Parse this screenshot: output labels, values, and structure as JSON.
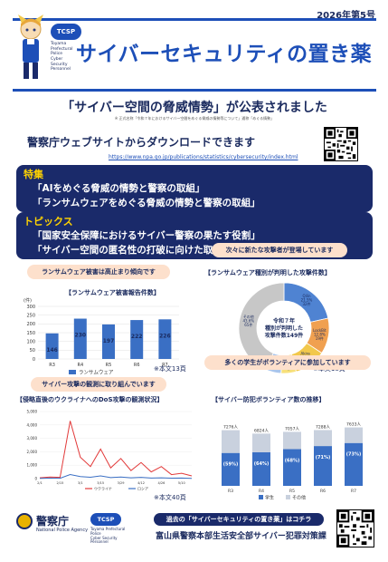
{
  "header": {
    "issue": "2026年第5号",
    "title": "サイバーセキュリティの置き薬",
    "tcsp_badge": "TCSP",
    "tcsp_lines": [
      "Toyama",
      "Prefectural",
      "Police",
      "Cyber",
      "Security",
      "Personnel"
    ]
  },
  "headline": "「サイバー空間の脅威情勢」が公表されました",
  "footnote": "※ 正式名称「令和７年におけるサイバー空間をめぐる脅威の情勢等について」通称「めぐる情勢」",
  "download": {
    "text": "警察庁ウェブサイトからダウンロードできます",
    "url": "https://www.npa.go.jp/publications/statistics/cybersecurity/index.html"
  },
  "special": {
    "label": "特集",
    "items": [
      "「AIをめぐる脅威の情勢と警察の取組」",
      "「ランサムウェアをめぐる脅威の情勢と警察の取組」"
    ]
  },
  "topics": {
    "label": "トピックス",
    "items": [
      "「国家安全保障におけるサイバー警察の果たす役割」",
      "「サイバー空間の匿名性の打破に向けた取組」"
    ]
  },
  "panels": {
    "ransom_pill": "ランサムウェア被害は高止まり傾向です",
    "attackers_pill": "次々に新たな攻撃者が登場しています",
    "observe_pill": "サイバー攻撃の観測に取り組んでいます",
    "students_pill": "多くの学生がボランティアに参加しています",
    "note13": "※本文13頁",
    "note18": "※本文18頁",
    "note40": "※本文40頁"
  },
  "chart_data": [
    {
      "type": "bar",
      "title": "【ランサムウェア被害報告件数】",
      "ylabel": "(件)",
      "categories": [
        "R3",
        "R4",
        "R5",
        "R6",
        "R7"
      ],
      "values": [
        146,
        230,
        197,
        222,
        226
      ],
      "ylim": [
        0,
        300
      ],
      "yticks": [
        0,
        50,
        100,
        150,
        200,
        250,
        300
      ],
      "legend": "ランサムウェア",
      "color": "#3a6fc4"
    },
    {
      "type": "pie",
      "title": "【ランサムウェア種別が判明した攻撃件数】",
      "center": [
        "令和７年",
        "種別が判明した",
        "攻撃件数149件"
      ],
      "slices": [
        {
          "label": "Qilin",
          "pct": "21.5%",
          "count": "32件",
          "value": 21.5,
          "color": "#4f83d2"
        },
        {
          "label": "LockBit",
          "pct": "12.8%",
          "count": "19件",
          "value": 12.8,
          "color": "#f0a050"
        },
        {
          "label": "Akira",
          "pct": "11.4%",
          "count": "17件",
          "value": 11.4,
          "color": "#f2c84b"
        },
        {
          "label": "Lynx",
          "pct": "5.4%",
          "count": "8件",
          "value": 5.4,
          "color": "#f7e07a"
        },
        {
          "label": "Ransomhub",
          "pct": "5.4%",
          "count": "8件",
          "value": 5.4,
          "color": "#a9c5ec"
        },
        {
          "label": "その他",
          "pct": "43.6%",
          "count": "65件",
          "value": 43.6,
          "color": "#c7c7c7"
        }
      ]
    },
    {
      "type": "line",
      "title": "【侵略直後のウクライナへのDoS攻撃の観測状況】",
      "ylim": [
        0,
        5000
      ],
      "yticks": [
        "0",
        "1,000",
        "2,000",
        "3,000",
        "4,000",
        "5,000"
      ],
      "x": [
        "2/1",
        "2/8",
        "2/15",
        "2/22",
        "3/1",
        "3/8",
        "3/15",
        "3/22",
        "3/29",
        "4/5",
        "4/12",
        "4/19",
        "4/26",
        "5/3",
        "5/10",
        "5/17"
      ],
      "series": [
        {
          "name": "ウクライナ",
          "color": "#e23a3a",
          "values": [
            60,
            120,
            90,
            4300,
            1600,
            900,
            2200,
            800,
            1500,
            600,
            1200,
            500,
            900,
            300,
            400,
            200
          ]
        },
        {
          "name": "ロシア",
          "color": "#3a6fc4",
          "values": [
            20,
            30,
            25,
            300,
            150,
            100,
            200,
            80,
            120,
            60,
            90,
            40,
            60,
            30,
            40,
            20
          ]
        }
      ]
    },
    {
      "type": "bar",
      "title": "【サイバー防犯ボランティア数の推移】",
      "categories": [
        "R3",
        "R4",
        "R5",
        "R6",
        "R7"
      ],
      "totals": [
        "7276人",
        "6824人",
        "7057人",
        "7288人",
        "7633人"
      ],
      "total_values": [
        7276,
        6824,
        7057,
        7288,
        7633
      ],
      "series": [
        {
          "name": "学生",
          "color": "#3a6fc4",
          "values": [
            4300,
            4400,
            4800,
            5200,
            5600
          ],
          "labels": [
            "(59%)",
            "(64%)",
            "(68%)",
            "(71%)",
            "(73%)"
          ]
        },
        {
          "name": "その他",
          "color": "#c9d1de",
          "values": [
            2976,
            2424,
            2257,
            2088,
            2033
          ]
        }
      ],
      "ylim": [
        0,
        9000
      ]
    }
  ],
  "footer": {
    "police_name": "警察庁",
    "police_sub": "National Police Agency",
    "tcsp_badge": "TCSP",
    "tcsp_lines": [
      "Toyama Prefectural",
      "Police",
      "Cyber Security",
      "Personnel"
    ],
    "link_text": "過去の「サイバーセキュリティの置き薬」はコチラ",
    "org": "富山県警察本部生活安全部サイバー犯罪対策課"
  }
}
